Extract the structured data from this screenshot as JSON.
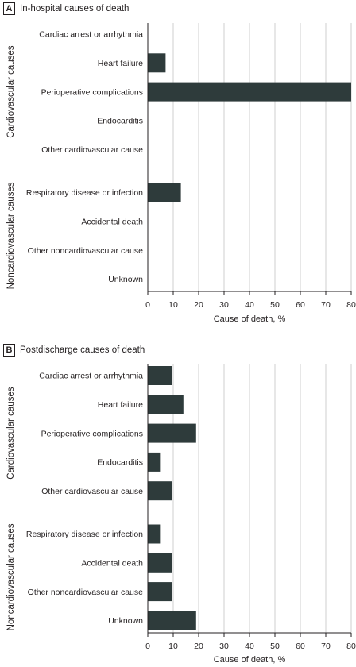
{
  "chart_data": [
    {
      "type": "bar",
      "orientation": "horizontal",
      "panel_label": "A",
      "title": "In-hospital causes of death",
      "xlabel": "Cause of death, %",
      "xlim": [
        0,
        80
      ],
      "xticks": [
        0,
        10,
        20,
        30,
        40,
        50,
        60,
        70,
        80
      ],
      "grid": true,
      "groups": [
        {
          "label": "Cardiovascular causes",
          "categories": [
            "Cardiac arrest or arrhythmia",
            "Heart failure",
            "Perioperative complications",
            "Endocarditis",
            "Other cardiovascular cause"
          ],
          "values": [
            0,
            7,
            80,
            0,
            0
          ]
        },
        {
          "label": "Noncardiovascular causes",
          "categories": [
            "Respiratory disease or infection",
            "Accidental death",
            "Other noncardiovascular cause",
            "Unknown"
          ],
          "values": [
            13,
            0,
            0,
            0
          ]
        }
      ],
      "bar_color": "#2e3b3b"
    },
    {
      "type": "bar",
      "orientation": "horizontal",
      "panel_label": "B",
      "title": "Postdischarge causes of death",
      "xlabel": "Cause of death, %",
      "xlim": [
        0,
        80
      ],
      "xticks": [
        0,
        10,
        20,
        30,
        40,
        50,
        60,
        70,
        80
      ],
      "grid": true,
      "groups": [
        {
          "label": "Cardiovascular causes",
          "categories": [
            "Cardiac arrest or arrhythmia",
            "Heart failure",
            "Perioperative complications",
            "Endocarditis",
            "Other cardiovascular cause"
          ],
          "values": [
            9.5,
            14,
            19,
            4.8,
            9.5
          ]
        },
        {
          "label": "Noncardiovascular causes",
          "categories": [
            "Respiratory disease or infection",
            "Accidental death",
            "Other noncardiovascular cause",
            "Unknown"
          ],
          "values": [
            4.8,
            9.5,
            9.5,
            19
          ]
        }
      ],
      "bar_color": "#2e3b3b"
    }
  ]
}
